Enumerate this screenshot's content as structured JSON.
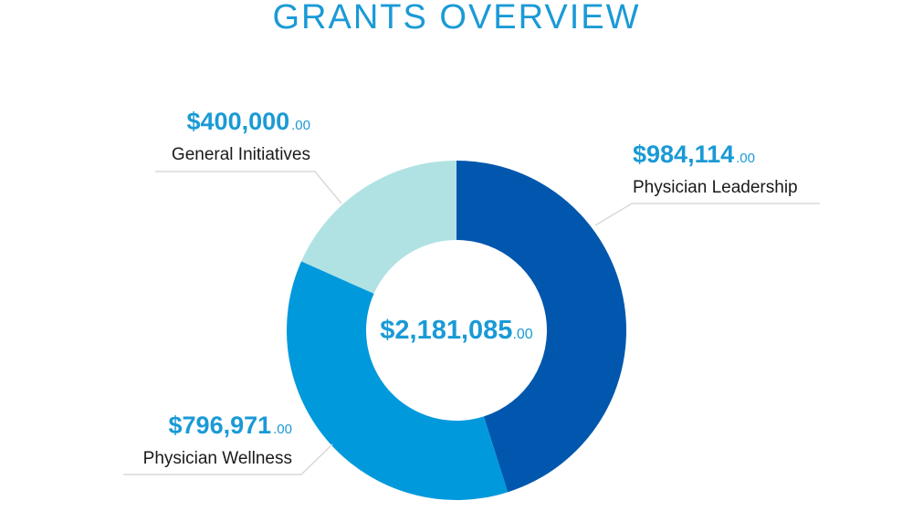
{
  "page_title": "GRANTS OVERVIEW",
  "chart_data": {
    "type": "pie",
    "variant": "donut",
    "title": "GRANTS OVERVIEW",
    "total": {
      "amount": "$2,181,085",
      "cents": ".00",
      "value": 2181085.0
    },
    "slices": [
      {
        "name": "Physician Leadership",
        "value": 984114.0,
        "amount": "$984,114",
        "cents": ".00",
        "color": "#0057ad"
      },
      {
        "name": "Physician Wellness",
        "value": 796971.0,
        "amount": "$796,971",
        "cents": ".00",
        "color": "#0099dc"
      },
      {
        "name": "General Initiatives",
        "value": 400000.0,
        "amount": "$400,000",
        "cents": ".00",
        "color": "#b0e2e3"
      }
    ],
    "legend": "callouts"
  },
  "colors": {
    "title": "#1a9ad6",
    "amount_text": "#1a9ad6",
    "label_text": "#1a1a1a",
    "leader_line": "#d9d9d9"
  }
}
